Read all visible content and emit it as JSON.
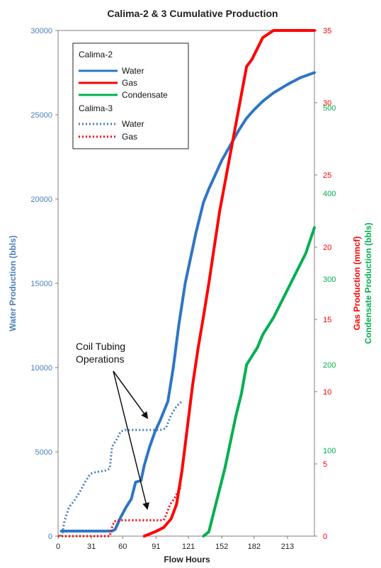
{
  "chart_data": {
    "type": "line",
    "title": "Calima-2 & 3 Cumulative Production",
    "xlabel": "Flow Hours",
    "x_ticks": [
      "0",
      "31",
      "60",
      "91",
      "121",
      "152",
      "182",
      "213"
    ],
    "x_range": [
      0,
      238
    ],
    "y_axes": {
      "left": {
        "label": "Water Production (bbls)",
        "range": [
          0,
          30000
        ],
        "ticks": [
          0,
          5000,
          10000,
          15000,
          20000,
          25000,
          30000
        ],
        "color": "#4a7ebb"
      },
      "gas": {
        "label": "Gas Production (mmcf)",
        "range": [
          0,
          35
        ],
        "ticks": [
          0,
          5,
          10,
          15,
          20,
          25,
          30,
          35
        ],
        "color": "#ff0000"
      },
      "condensate": {
        "label": "Condensate Production (bbls)",
        "range": [
          0,
          590
        ],
        "ticks": [
          100,
          200,
          300,
          400,
          500
        ],
        "color": "#00b050"
      }
    },
    "legend": {
      "placement": "top-left",
      "groups": [
        {
          "title": "Calima-2",
          "entries": [
            {
              "name": "Water",
              "color": "#2e75c6",
              "style": "solid"
            },
            {
              "name": "Gas",
              "color": "#ff0000",
              "style": "solid"
            },
            {
              "name": "Condensate",
              "color": "#00b050",
              "style": "solid"
            }
          ]
        },
        {
          "title": "Calima-3",
          "entries": [
            {
              "name": "Water",
              "color": "#4a7ebb",
              "style": "dotted"
            },
            {
              "name": "Gas",
              "color": "#ff0000",
              "style": "dotted"
            }
          ]
        }
      ]
    },
    "annotation": {
      "line1": "Coil Tubing",
      "line2": "Operations"
    },
    "series": [
      {
        "id": "c2-water",
        "well": "Calima-2",
        "name": "Water",
        "axis": "left",
        "color": "#2e75c6",
        "style": "solid",
        "points": [
          [
            3,
            300
          ],
          [
            50,
            300
          ],
          [
            53,
            400
          ],
          [
            58,
            1100
          ],
          [
            63,
            1700
          ],
          [
            68,
            2200
          ],
          [
            72,
            3200
          ],
          [
            77,
            3300
          ],
          [
            80,
            4200
          ],
          [
            85,
            5300
          ],
          [
            90,
            6200
          ],
          [
            95,
            6900
          ],
          [
            102,
            8000
          ],
          [
            107,
            10000
          ],
          [
            112,
            12500
          ],
          [
            118,
            15000
          ],
          [
            123,
            16500
          ],
          [
            128,
            18000
          ],
          [
            135,
            19800
          ],
          [
            140,
            20600
          ],
          [
            145,
            21300
          ],
          [
            152,
            22300
          ],
          [
            160,
            23200
          ],
          [
            168,
            24100
          ],
          [
            175,
            24800
          ],
          [
            182,
            25300
          ],
          [
            190,
            25800
          ],
          [
            200,
            26300
          ],
          [
            213,
            26800
          ],
          [
            225,
            27200
          ],
          [
            238,
            27500
          ]
        ]
      },
      {
        "id": "c2-gas",
        "well": "Calima-2",
        "name": "Gas",
        "axis": "gas",
        "color": "#ff0000",
        "style": "solid",
        "points": [
          [
            80,
            0
          ],
          [
            90,
            0.3
          ],
          [
            98,
            0.6
          ],
          [
            105,
            1.2
          ],
          [
            110,
            2.2
          ],
          [
            115,
            4.5
          ],
          [
            120,
            7.5
          ],
          [
            125,
            10.5
          ],
          [
            130,
            13
          ],
          [
            135,
            15.2
          ],
          [
            140,
            17.5
          ],
          [
            145,
            20
          ],
          [
            150,
            22.5
          ],
          [
            155,
            24.5
          ],
          [
            160,
            26.5
          ],
          [
            165,
            28.5
          ],
          [
            170,
            30.5
          ],
          [
            175,
            32.5
          ],
          [
            180,
            33
          ],
          [
            190,
            34.5
          ],
          [
            200,
            36.3
          ],
          [
            210,
            38.3
          ],
          [
            220,
            40.5
          ],
          [
            230,
            43.5
          ],
          [
            238,
            45.5
          ]
        ]
      },
      {
        "id": "c2-cond",
        "well": "Calima-2",
        "name": "Condensate",
        "axis": "condensate",
        "color": "#00b050",
        "style": "solid",
        "points": [
          [
            135,
            0
          ],
          [
            140,
            5
          ],
          [
            145,
            30
          ],
          [
            150,
            55
          ],
          [
            155,
            80
          ],
          [
            160,
            110
          ],
          [
            165,
            140
          ],
          [
            170,
            165
          ],
          [
            175,
            200
          ],
          [
            180,
            210
          ],
          [
            185,
            220
          ],
          [
            190,
            235
          ],
          [
            200,
            255
          ],
          [
            210,
            280
          ],
          [
            220,
            305
          ],
          [
            230,
            330
          ],
          [
            238,
            360
          ]
        ]
      },
      {
        "id": "c3-water",
        "well": "Calima-3",
        "name": "Water",
        "axis": "left",
        "color": "#4a7ebb",
        "style": "dotted",
        "points": [
          [
            2,
            0
          ],
          [
            4,
            200
          ],
          [
            6,
            900
          ],
          [
            10,
            1700
          ],
          [
            15,
            2100
          ],
          [
            20,
            2600
          ],
          [
            25,
            3200
          ],
          [
            30,
            3700
          ],
          [
            35,
            3800
          ],
          [
            40,
            3850
          ],
          [
            45,
            3900
          ],
          [
            48,
            4000
          ],
          [
            50,
            5300
          ],
          [
            52,
            5500
          ],
          [
            55,
            5800
          ],
          [
            58,
            6200
          ],
          [
            62,
            6300
          ],
          [
            70,
            6300
          ],
          [
            80,
            6300
          ],
          [
            95,
            6300
          ],
          [
            100,
            6400
          ],
          [
            105,
            7200
          ],
          [
            110,
            7700
          ],
          [
            115,
            8000
          ]
        ]
      },
      {
        "id": "c3-gas",
        "well": "Calima-3",
        "name": "Gas",
        "axis": "gas",
        "color": "#ff0000",
        "style": "dotted",
        "points": [
          [
            0,
            0
          ],
          [
            48,
            0
          ],
          [
            50,
            0.6
          ],
          [
            52,
            1
          ],
          [
            55,
            1.1
          ],
          [
            70,
            1.1
          ],
          [
            85,
            1.1
          ],
          [
            98,
            1.1
          ],
          [
            100,
            1.4
          ],
          [
            104,
            2.2
          ],
          [
            108,
            2.6
          ],
          [
            112,
            3.2
          ],
          [
            115,
            3.5
          ]
        ]
      }
    ]
  }
}
